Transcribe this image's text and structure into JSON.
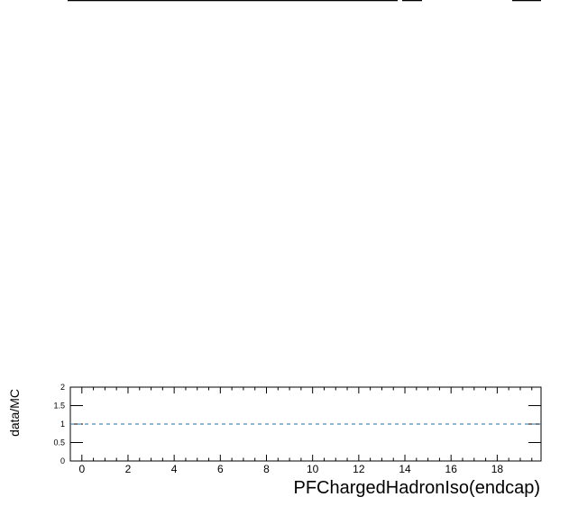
{
  "chart_data": {
    "type": "line",
    "title": "",
    "xlabel": "PFChargedHadronIso(endcap)",
    "ylabel": "data/MC",
    "xlim": [
      -0.5,
      19.9
    ],
    "ylim": [
      0,
      2
    ],
    "x_ticks": [
      0,
      2,
      4,
      6,
      8,
      10,
      12,
      14,
      16,
      18
    ],
    "x_tick_labels": [
      "0",
      "2",
      "4",
      "6",
      "8",
      "10",
      "12",
      "14",
      "16",
      "18"
    ],
    "y_ticks": [
      0,
      0.5,
      1,
      1.5,
      2
    ],
    "y_tick_labels": [
      "0",
      "0.5",
      "1",
      "1.5",
      "2"
    ],
    "reference_line": {
      "y": 1,
      "style": "dashed",
      "color": "#2a6fa0"
    },
    "series": [],
    "grid": false,
    "colors": {
      "axis": "#000000",
      "reference": "#2a6fa0"
    }
  }
}
